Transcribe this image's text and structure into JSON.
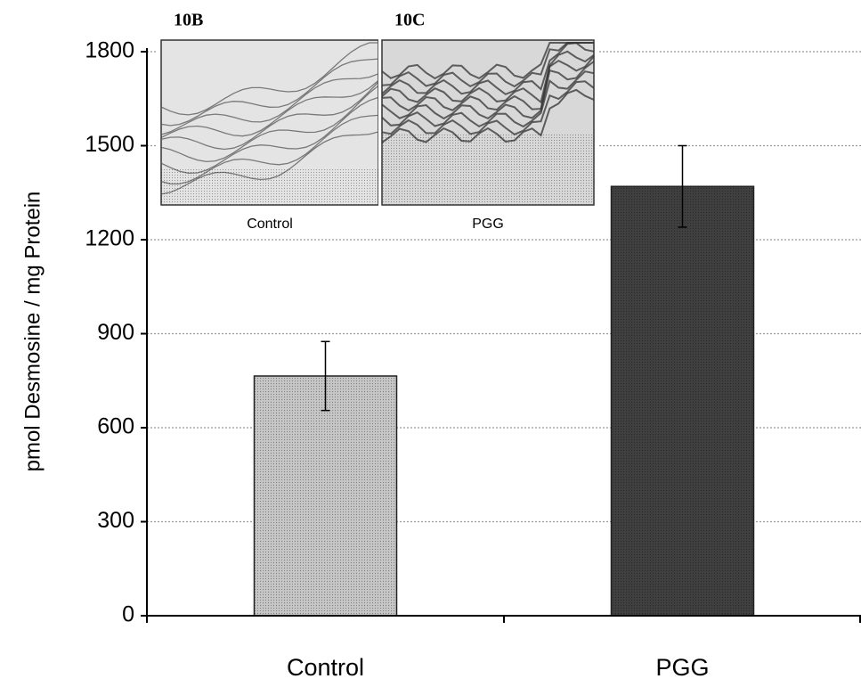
{
  "chart_data": {
    "type": "bar",
    "y_label": "pmol Desmosine / mg Protein",
    "categories": [
      "Control",
      "PGG"
    ],
    "values": [
      765,
      1370
    ],
    "errors": [
      110,
      130
    ],
    "colors": [
      "#c6c6c6",
      "#404040"
    ],
    "ylim": [
      0,
      1800
    ],
    "yticks": [
      0,
      300,
      600,
      900,
      1200,
      1500,
      1800
    ],
    "grid": true,
    "insets": [
      {
        "label": "10B",
        "caption": "Control"
      },
      {
        "label": "10C",
        "caption": "PGG"
      }
    ]
  }
}
